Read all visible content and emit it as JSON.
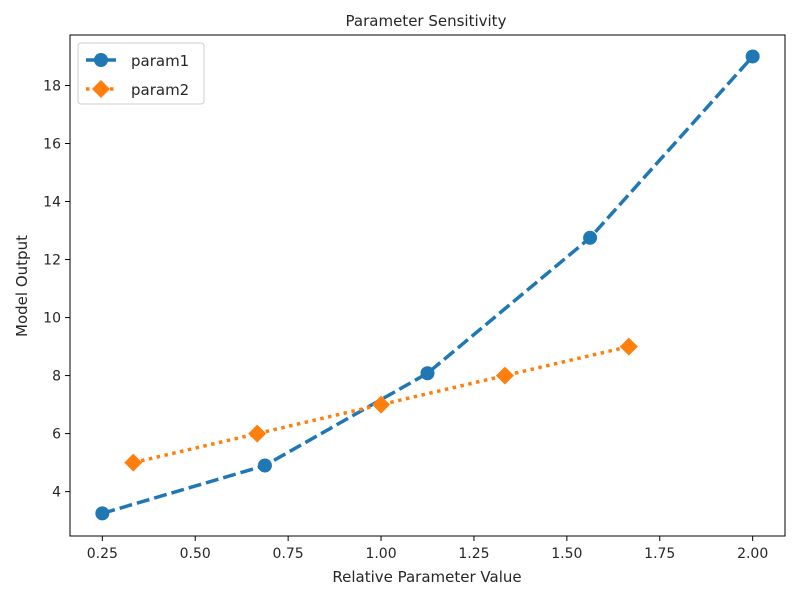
{
  "chart_data": {
    "type": "line",
    "title": "Parameter Sensitivity",
    "xlabel": "Relative Parameter Value",
    "ylabel": "Model Output",
    "xlim": [
      0.163,
      2.087
    ],
    "ylim": [
      2.47,
      19.74
    ],
    "xticks": [
      0.25,
      0.5,
      0.75,
      1.0,
      1.25,
      1.5,
      1.75,
      2.0
    ],
    "xtick_labels": [
      "0.25",
      "0.50",
      "0.75",
      "1.00",
      "1.25",
      "1.50",
      "1.75",
      "2.00"
    ],
    "yticks": [
      4,
      6,
      8,
      10,
      12,
      14,
      16,
      18
    ],
    "ytick_labels": [
      "4",
      "6",
      "8",
      "10",
      "12",
      "14",
      "16",
      "18"
    ],
    "grid": false,
    "legend_position": "top-left",
    "series": [
      {
        "name": "param1",
        "color": "#1f77b4",
        "linestyle": "dashed",
        "marker": "circle",
        "x": [
          0.25,
          0.6875,
          1.125,
          1.5625,
          2.0
        ],
        "y": [
          3.25,
          4.9,
          8.08,
          12.75,
          19.0
        ]
      },
      {
        "name": "param2",
        "color": "#ff7f0e",
        "linestyle": "dotted",
        "marker": "diamond",
        "x": [
          0.3333,
          0.6667,
          1.0,
          1.3333,
          1.6667
        ],
        "y": [
          5.0,
          6.0,
          7.0,
          8.0,
          9.0
        ]
      }
    ]
  }
}
